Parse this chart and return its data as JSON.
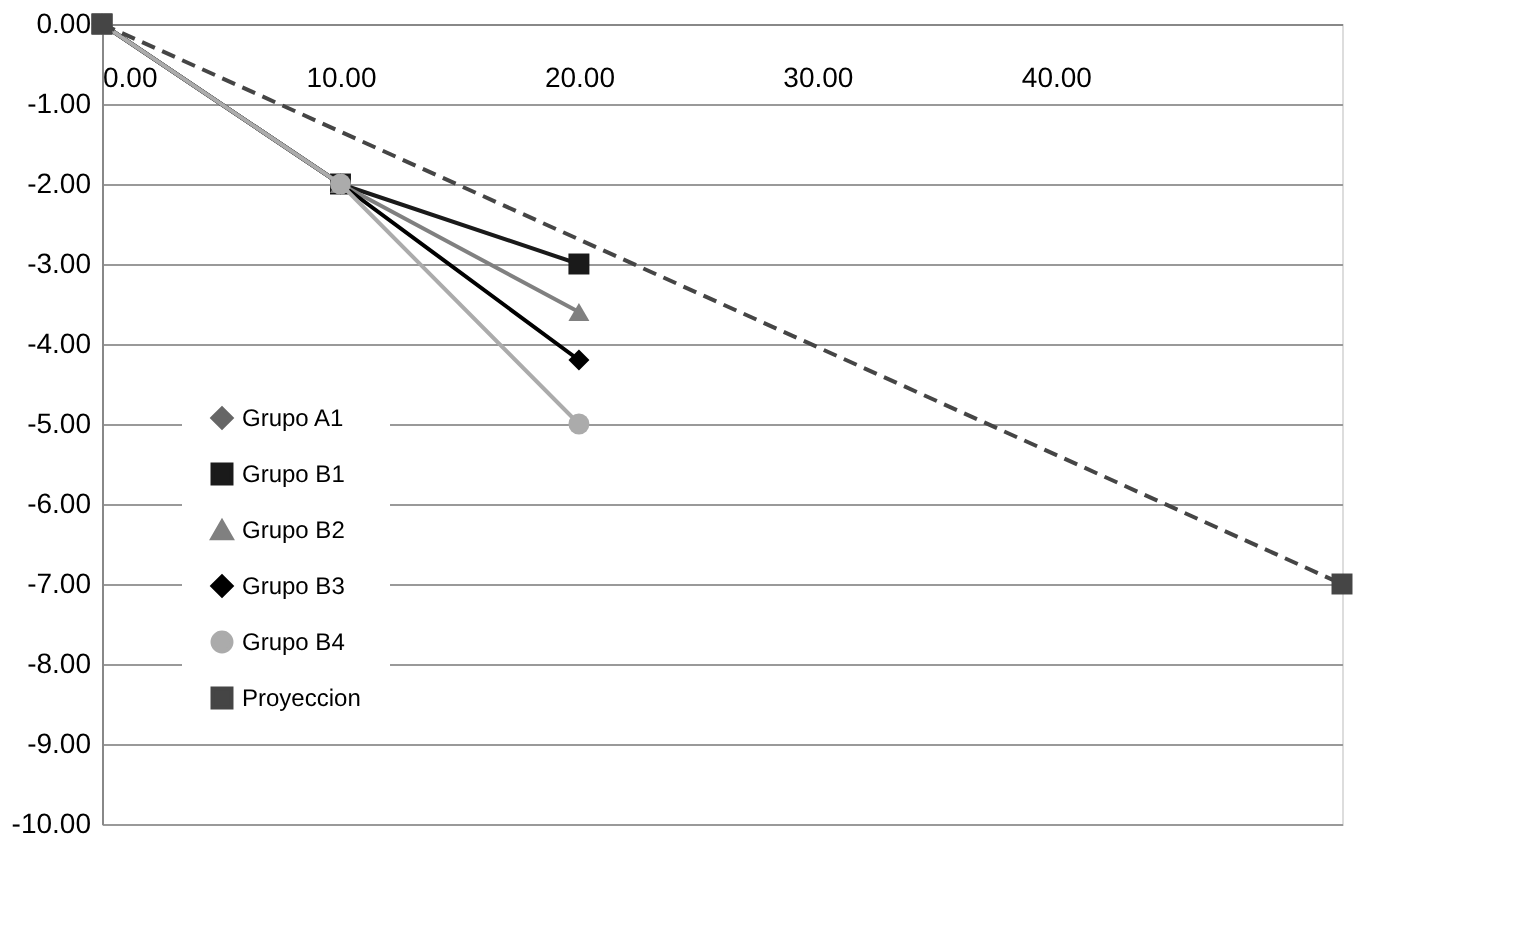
{
  "chart_data": {
    "type": "line",
    "x": [
      0,
      10,
      20
    ],
    "series": [
      {
        "name": "Grupo A1",
        "color": "#666666",
        "marker": "diamond",
        "values": [
          0,
          -2,
          null
        ]
      },
      {
        "name": "Grupo B1",
        "color": "#1a1a1a",
        "marker": "square",
        "values": [
          0,
          -2,
          -3
        ]
      },
      {
        "name": "Grupo B2",
        "color": "#808080",
        "marker": "triangle",
        "values": [
          0,
          -2,
          -3.6
        ]
      },
      {
        "name": "Grupo B3",
        "color": "#000000",
        "marker": "diamond",
        "values": [
          0,
          -2,
          -4.2
        ]
      },
      {
        "name": "Grupo B4",
        "color": "#ababab",
        "marker": "circle",
        "values": [
          0,
          -2,
          -5
        ]
      },
      {
        "name": "Proyeccion",
        "color": "#454545",
        "marker": "square",
        "line_style": "dashed",
        "x": [
          0,
          52
        ],
        "values": [
          0,
          -7
        ]
      }
    ],
    "xlim": [
      0,
      52
    ],
    "xticks": [
      {
        "value": 0,
        "label": "0.00"
      },
      {
        "value": 10,
        "label": "10.00"
      },
      {
        "value": 20,
        "label": "20.00"
      },
      {
        "value": 30,
        "label": "30.00"
      },
      {
        "value": 40,
        "label": "40.00"
      }
    ],
    "ylim": [
      -10,
      0
    ],
    "yticks": [
      {
        "value": 0,
        "label": "0.00"
      },
      {
        "value": -1,
        "label": "-1.00"
      },
      {
        "value": -2,
        "label": "-2.00"
      },
      {
        "value": -3,
        "label": "-3.00"
      },
      {
        "value": -4,
        "label": "-4.00"
      },
      {
        "value": -5,
        "label": "-5.00"
      },
      {
        "value": -6,
        "label": "-6.00"
      },
      {
        "value": -7,
        "label": "-7.00"
      },
      {
        "value": -8,
        "label": "-8.00"
      },
      {
        "value": -9,
        "label": "-9.00"
      },
      {
        "value": -10,
        "label": "-10.00"
      }
    ],
    "grid": "y",
    "legend": "bottom left",
    "line_style": "solid"
  }
}
